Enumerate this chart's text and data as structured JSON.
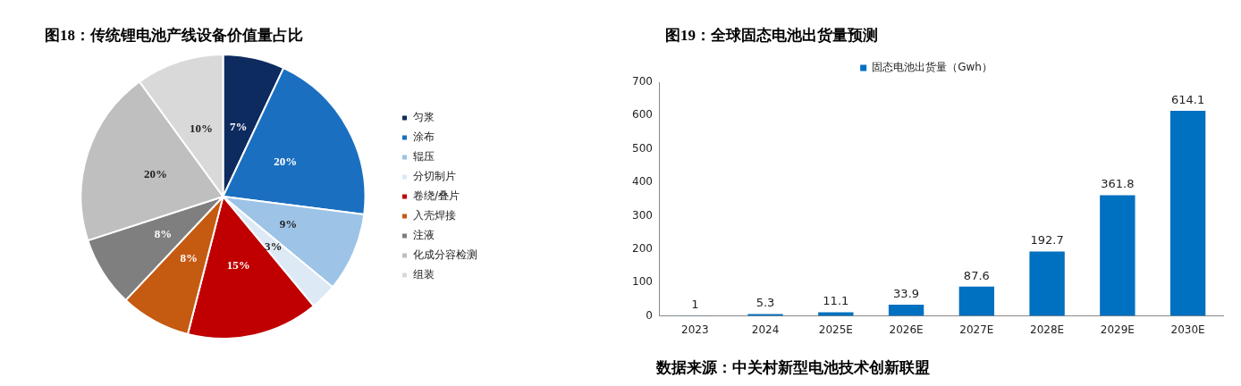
{
  "chart_data": [
    {
      "type": "pie",
      "title": "图18：传统锂电池产线设备价值量占比",
      "categories": [
        "匀浆",
        "涂布",
        "辊压",
        "分切制片",
        "卷绕/叠片",
        "入壳焊接",
        "注液",
        "化成分容检测",
        "组装"
      ],
      "values": [
        7,
        20,
        9,
        3,
        15,
        8,
        8,
        20,
        10
      ],
      "colors": [
        "#0d2b5e",
        "#1a6fc0",
        "#9dc3e6",
        "#dde9f5",
        "#c00000",
        "#c55a11",
        "#7f7f7f",
        "#bfbfbf",
        "#d9d9d9"
      ],
      "value_labels": [
        "7%",
        "20%",
        "9%",
        "3%",
        "15%",
        "8%",
        "8%",
        "20%",
        "10%"
      ],
      "legend": "right"
    },
    {
      "type": "bar",
      "title": "图19：全球固态电池出货量预测",
      "categories": [
        "2023",
        "2024",
        "2025E",
        "2026E",
        "2027E",
        "2028E",
        "2029E",
        "2030E"
      ],
      "series": [
        {
          "name": "固态电池出货量（Gwh）",
          "color": "#0070c0",
          "values": [
            1,
            5.3,
            11.1,
            33.9,
            87.6,
            192.7,
            361.8,
            614.1
          ]
        }
      ],
      "ylim": [
        0,
        700
      ],
      "yticks": [
        0,
        100,
        200,
        300,
        400,
        500,
        600,
        700
      ],
      "grid": false,
      "data_labels": true,
      "legend": "top",
      "annotations": [
        "数据来源：中关村新型电池技术创新联盟"
      ]
    }
  ]
}
